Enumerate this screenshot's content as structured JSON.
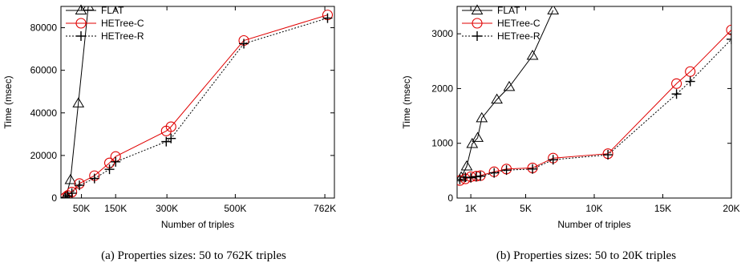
{
  "chart_data": [
    {
      "type": "line",
      "caption": "(a) Properties sizes: 50 to 762K triples",
      "xlabel": "Number of triples",
      "ylabel": "Time (msec)",
      "xlim": [
        -10,
        790
      ],
      "ylim": [
        0,
        90000
      ],
      "xticks": [
        {
          "v": 50,
          "label": "50K"
        },
        {
          "v": 150,
          "label": "150K"
        },
        {
          "v": 300,
          "label": "300K"
        },
        {
          "v": 500,
          "label": "500K"
        },
        {
          "v": 762,
          "label": "762K"
        }
      ],
      "yticks": [
        0,
        20000,
        40000,
        60000,
        80000
      ],
      "legend_position": "top-left",
      "series": [
        {
          "name": "FLAT",
          "color": "#000000",
          "marker": "triangle",
          "dash": "",
          "x": [
            5,
            18,
            41,
            70
          ],
          "y": [
            800,
            8500,
            44500,
            90000
          ]
        },
        {
          "name": "HETree-C",
          "color": "#e00000",
          "marker": "circle",
          "dash": "",
          "x": [
            3,
            10,
            22,
            44,
            88,
            132,
            150,
            298,
            312,
            525,
            770
          ],
          "y": [
            300,
            1200,
            2800,
            6800,
            10500,
            16500,
            19500,
            31500,
            33500,
            74000,
            86000
          ]
        },
        {
          "name": "HETree-R",
          "color": "#000000",
          "marker": "plus",
          "dash": "2,2",
          "x": [
            3,
            10,
            22,
            44,
            88,
            132,
            150,
            298,
            312,
            525,
            770
          ],
          "y": [
            300,
            1000,
            2300,
            6000,
            9200,
            13500,
            17000,
            26500,
            28000,
            72500,
            84500
          ]
        }
      ]
    },
    {
      "type": "line",
      "caption": "(b) Properties sizes: 50 to 20K triples",
      "xlabel": "Number of triples",
      "ylabel": "Time (msec)",
      "xlim": [
        0,
        20000
      ],
      "ylim": [
        0,
        3500
      ],
      "xticks": [
        {
          "v": 1000,
          "label": "1K"
        },
        {
          "v": 5000,
          "label": "5K"
        },
        {
          "v": 10000,
          "label": "10K"
        },
        {
          "v": 15000,
          "label": "15K"
        },
        {
          "v": 20000,
          "label": "20K"
        }
      ],
      "yticks": [
        0,
        1000,
        2000,
        3000
      ],
      "legend_position": "top-left",
      "series": [
        {
          "name": "FLAT",
          "color": "#000000",
          "marker": "triangle",
          "dash": "",
          "x": [
            300,
            700,
            1100,
            1500,
            1800,
            2900,
            3800,
            5500,
            7000
          ],
          "y": [
            380,
            580,
            990,
            1100,
            1460,
            1800,
            2030,
            2600,
            3430
          ]
        },
        {
          "name": "HETree-C",
          "color": "#e00000",
          "marker": "circle",
          "dash": "",
          "x": [
            200,
            600,
            1000,
            1400,
            1700,
            2700,
            3600,
            5500,
            7000,
            11000,
            16000,
            17000,
            20000
          ],
          "y": [
            320,
            350,
            390,
            400,
            410,
            480,
            530,
            550,
            730,
            810,
            2090,
            2310,
            3070
          ]
        },
        {
          "name": "HETree-R",
          "color": "#000000",
          "marker": "plus",
          "dash": "2,2",
          "x": [
            200,
            600,
            1000,
            1400,
            1700,
            2700,
            3600,
            5500,
            7000,
            11000,
            16000,
            17000,
            20000
          ],
          "y": [
            340,
            380,
            370,
            390,
            400,
            460,
            510,
            530,
            700,
            790,
            1900,
            2130,
            2900
          ]
        }
      ]
    }
  ]
}
